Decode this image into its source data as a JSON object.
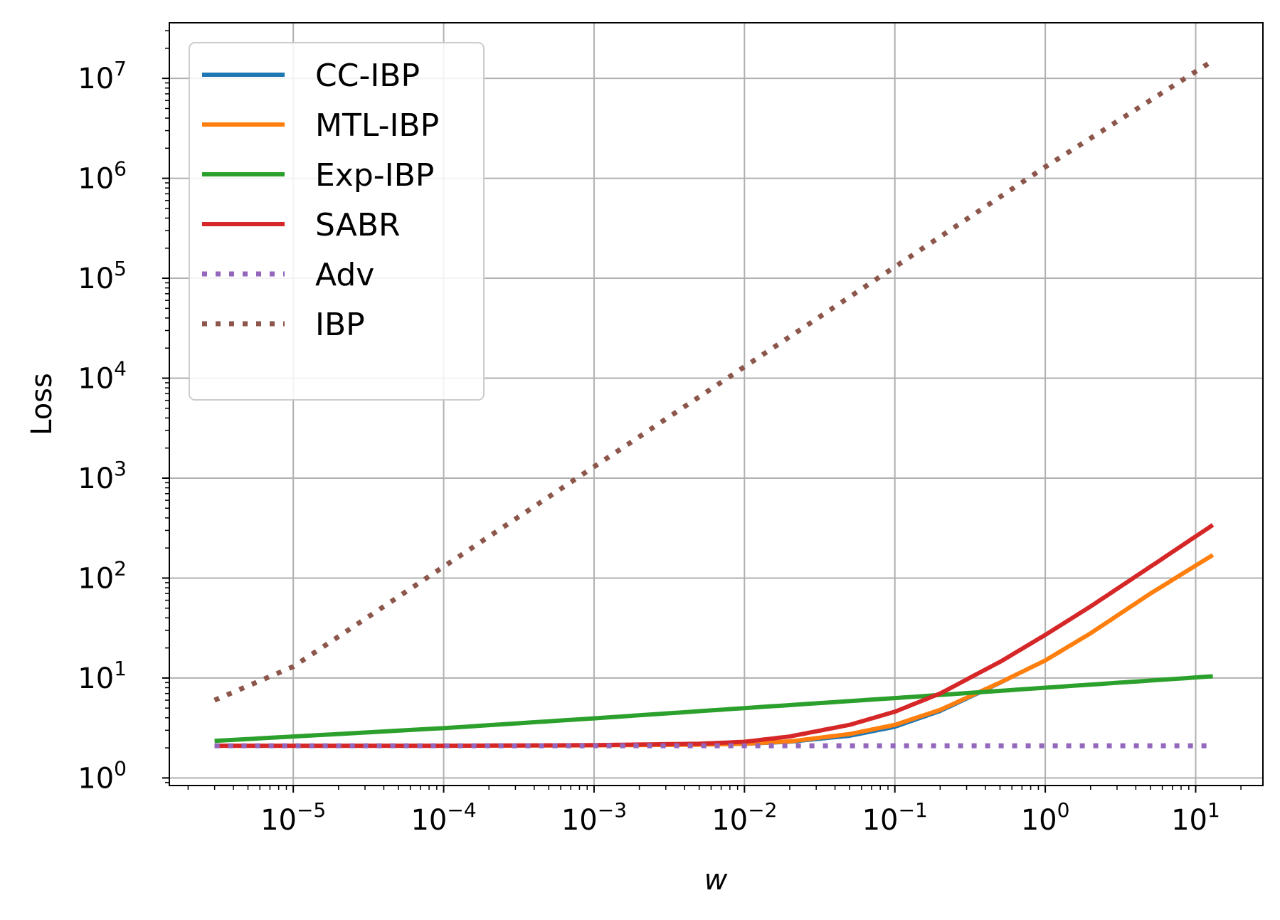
{
  "chart_data": {
    "type": "line",
    "xlabel": "w",
    "ylabel": "Loss",
    "xscale": "log",
    "yscale": "log",
    "xlim": [
      1.5e-06,
      28
    ],
    "ylim": [
      0.84,
      36000000.0
    ],
    "grid": true,
    "legend_position": "top-left",
    "x_ticks": [
      {
        "value": 1e-05,
        "base": "10",
        "exp": "−5"
      },
      {
        "value": 0.0001,
        "base": "10",
        "exp": "−4"
      },
      {
        "value": 0.001,
        "base": "10",
        "exp": "−3"
      },
      {
        "value": 0.01,
        "base": "10",
        "exp": "−2"
      },
      {
        "value": 0.1,
        "base": "10",
        "exp": "−1"
      },
      {
        "value": 1,
        "base": "10",
        "exp": "0"
      },
      {
        "value": 10,
        "base": "10",
        "exp": "1"
      }
    ],
    "y_ticks": [
      {
        "value": 1,
        "base": "10",
        "exp": "0"
      },
      {
        "value": 10,
        "base": "10",
        "exp": "1"
      },
      {
        "value": 100,
        "base": "10",
        "exp": "2"
      },
      {
        "value": 1000,
        "base": "10",
        "exp": "3"
      },
      {
        "value": 10000,
        "base": "10",
        "exp": "4"
      },
      {
        "value": 100000,
        "base": "10",
        "exp": "5"
      },
      {
        "value": 1000000,
        "base": "10",
        "exp": "6"
      },
      {
        "value": 10000000,
        "base": "10",
        "exp": "7"
      }
    ],
    "series": [
      {
        "name": "CC-IBP",
        "color": "#1f77b4",
        "style": "solid",
        "x": [
          3e-06,
          1e-05,
          0.0001,
          0.001,
          0.005,
          0.01,
          0.02,
          0.05,
          0.1,
          0.2,
          0.5,
          1,
          2,
          5,
          13
        ],
        "y": [
          2.1,
          2.1,
          2.1,
          2.11,
          2.13,
          2.16,
          2.27,
          2.6,
          3.2,
          4.6,
          8.8,
          15,
          28,
          70,
          170
        ]
      },
      {
        "name": "MTL-IBP",
        "color": "#ff7f0e",
        "style": "solid",
        "x": [
          3e-06,
          1e-05,
          0.0001,
          0.001,
          0.005,
          0.01,
          0.02,
          0.05,
          0.1,
          0.2,
          0.5,
          1,
          2,
          5,
          13
        ],
        "y": [
          2.1,
          2.1,
          2.1,
          2.12,
          2.15,
          2.2,
          2.32,
          2.75,
          3.4,
          4.8,
          9,
          15,
          28,
          70,
          170
        ]
      },
      {
        "name": "Exp-IBP",
        "color": "#2ca02c",
        "style": "solid",
        "x": [
          3e-06,
          1e-05,
          0.0001,
          0.001,
          0.01,
          0.1,
          1,
          13
        ],
        "y": [
          2.35,
          2.6,
          3.15,
          3.95,
          5.0,
          6.3,
          8.0,
          10.4
        ]
      },
      {
        "name": "SABR",
        "color": "#d62728",
        "style": "solid",
        "x": [
          3e-06,
          1e-05,
          0.0001,
          0.001,
          0.005,
          0.01,
          0.02,
          0.05,
          0.1,
          0.2,
          0.5,
          1,
          2,
          5,
          13
        ],
        "y": [
          2.1,
          2.1,
          2.1,
          2.13,
          2.2,
          2.3,
          2.6,
          3.4,
          4.6,
          7.0,
          14.5,
          27,
          52,
          130,
          340
        ]
      },
      {
        "name": "Adv",
        "color": "#9467bd",
        "style": "dotted",
        "x": [
          3e-06,
          13
        ],
        "y": [
          2.1,
          2.1
        ]
      },
      {
        "name": "IBP",
        "color": "#8c564b",
        "style": "dotted",
        "x": [
          3e-06,
          1e-05,
          0.0001,
          0.001,
          0.01,
          0.1,
          1,
          13
        ],
        "y": [
          6,
          13,
          130,
          1300,
          13000,
          130000,
          1300000,
          15000000
        ]
      }
    ]
  }
}
